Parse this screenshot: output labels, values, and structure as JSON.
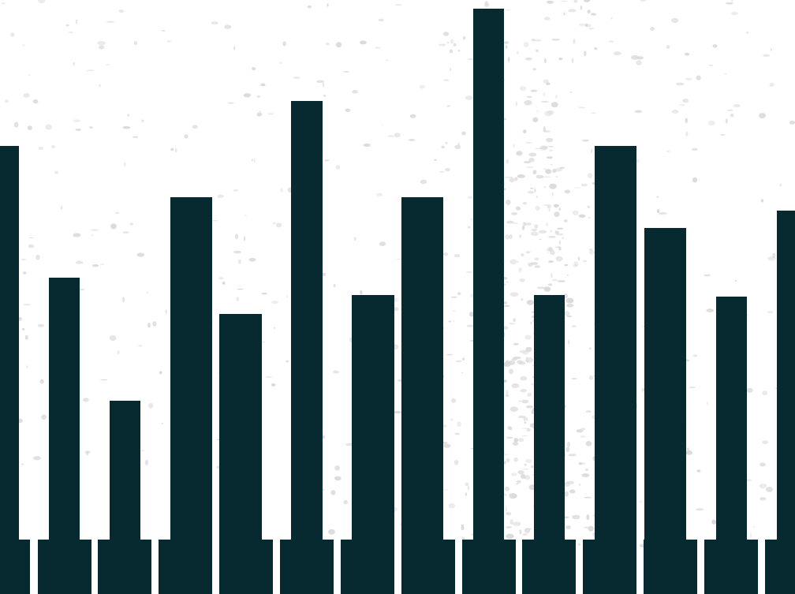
{
  "colors": {
    "background": "#ffffff",
    "texture": "#d9d9d9",
    "ink": "#072a31"
  }
}
